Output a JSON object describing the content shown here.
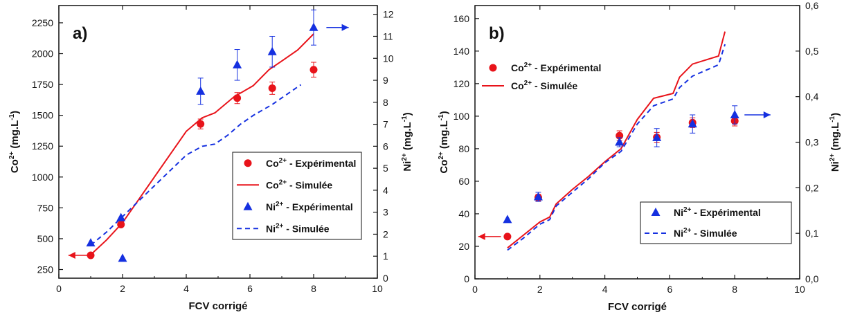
{
  "chart_data": [
    {
      "type": "scatter",
      "panel_label": "a)",
      "xlabel": "FCV corrigé",
      "ylabel": "Co",
      "ylabel_sup": "2+",
      "ylabel_unit": " (mg.L",
      "ylabel_unit_sup": "-1",
      "ylabel_close": ")",
      "y2label": "Ni",
      "y2label_sup": "2+",
      "y2label_unit": " (mg.L",
      "y2label_unit_sup": "-1",
      "y2label_close": ")",
      "xlim": [
        0,
        10
      ],
      "ylim": [
        180,
        2390
      ],
      "y2lim": [
        0,
        12.4
      ],
      "xticks": [
        "0",
        "2",
        "4",
        "6",
        "8",
        "10"
      ],
      "xtick_values": [
        0,
        2,
        4,
        6,
        8,
        10
      ],
      "yticks": [
        "250",
        "500",
        "750",
        "1000",
        "1250",
        "1500",
        "1750",
        "2000",
        "2250"
      ],
      "ytick_values": [
        250,
        500,
        750,
        1000,
        1250,
        1500,
        1750,
        2000,
        2250
      ],
      "y2ticks": [
        "0",
        "1",
        "2",
        "3",
        "4",
        "5",
        "6",
        "7",
        "8",
        "9",
        "10",
        "11",
        "12"
      ],
      "y2tick_values": [
        0,
        1,
        2,
        3,
        4,
        5,
        6,
        7,
        8,
        9,
        10,
        11,
        12
      ],
      "series": [
        {
          "name": "Co2+ - Expérimental",
          "kind": "marker-circle",
          "axis": "left",
          "color": "#e8131a",
          "x": [
            1.0,
            1.95,
            4.45,
            5.6,
            6.7,
            8.0
          ],
          "y": [
            365,
            615,
            1430,
            1640,
            1720,
            1870
          ],
          "err": [
            0,
            15,
            40,
            45,
            50,
            60
          ]
        },
        {
          "name": "Co2+ - Simulée",
          "kind": "line-solid",
          "axis": "left",
          "color": "#e8131a",
          "x": [
            1.0,
            1.5,
            2.0,
            3.0,
            4.0,
            4.5,
            4.9,
            5.5,
            6.1,
            6.6,
            7.0,
            7.5,
            8.0
          ],
          "y": [
            370,
            490,
            630,
            1000,
            1370,
            1480,
            1520,
            1650,
            1740,
            1870,
            1940,
            2030,
            2160
          ]
        },
        {
          "name": "Ni2+ - Expérimental",
          "kind": "marker-triangle",
          "axis": "right",
          "color": "#1530e0",
          "x": [
            1.0,
            1.95,
            2.0,
            4.45,
            5.6,
            6.7,
            8.0
          ],
          "y": [
            1.6,
            2.75,
            0.9,
            8.5,
            9.7,
            10.3,
            11.4
          ],
          "err": [
            0,
            0,
            0,
            0.6,
            0.7,
            0.7,
            0.8
          ]
        },
        {
          "name": "Ni2+ - Simulée",
          "kind": "line-dashed",
          "axis": "right",
          "color": "#1530e0",
          "x": [
            1.0,
            1.5,
            2.0,
            2.5,
            3.0,
            3.5,
            4.0,
            4.5,
            4.9,
            5.3,
            5.7,
            6.1,
            6.7,
            7.2,
            7.6
          ],
          "y": [
            1.5,
            2.1,
            2.8,
            3.5,
            4.2,
            4.9,
            5.6,
            6.0,
            6.1,
            6.5,
            7.0,
            7.4,
            7.9,
            8.4,
            8.8
          ]
        }
      ],
      "legend": {
        "position": "lower-right",
        "items": [
          {
            "label": "Co",
            "sup": "2+",
            "rest": " - Expérimental",
            "kind": "marker-circle",
            "color": "#e8131a"
          },
          {
            "label": "Co",
            "sup": "2+",
            "rest": " - Simulée",
            "kind": "line-solid",
            "color": "#e8131a"
          },
          {
            "label": "Ni",
            "sup": "2+",
            "rest": " - Expérimental",
            "kind": "marker-triangle",
            "color": "#1530e0"
          },
          {
            "label": "Ni",
            "sup": "2+",
            "rest": " - Simulée",
            "kind": "line-dashed",
            "color": "#1530e0"
          }
        ]
      },
      "arrows": [
        {
          "direction": "left",
          "color": "#e8131a",
          "y_axis": "left",
          "x_from": 0.95,
          "x_to": 0.3,
          "y": 365
        },
        {
          "direction": "right",
          "color": "#1530e0",
          "y_axis": "right",
          "x_from": 8.4,
          "x_to": 9.1,
          "y": 11.4
        }
      ]
    },
    {
      "type": "scatter",
      "panel_label": "b)",
      "xlabel": "FCV corrigé",
      "ylabel": "Co",
      "ylabel_sup": "2+",
      "ylabel_unit": " (mg.L",
      "ylabel_unit_sup": "-1",
      "ylabel_close": ")",
      "y2label": "Ni",
      "y2label_sup": "2+",
      "y2label_unit": " (mg.L",
      "y2label_unit_sup": "-1",
      "y2label_close": ")",
      "xlim": [
        0,
        10
      ],
      "ylim": [
        0,
        168
      ],
      "y2lim": [
        0,
        0.6
      ],
      "xticks": [
        "0",
        "2",
        "4",
        "6",
        "8",
        "10"
      ],
      "xtick_values": [
        0,
        2,
        4,
        6,
        8,
        10
      ],
      "yticks": [
        "0",
        "20",
        "40",
        "60",
        "80",
        "100",
        "120",
        "140",
        "160"
      ],
      "ytick_values": [
        0,
        20,
        40,
        60,
        80,
        100,
        120,
        140,
        160
      ],
      "y2ticks": [
        "0,0",
        "0,1",
        "0,2",
        "0,3",
        "0,4",
        "0,5",
        "0,6"
      ],
      "y2tick_values": [
        0,
        0.1,
        0.2,
        0.3,
        0.4,
        0.5,
        0.6
      ],
      "series": [
        {
          "name": "Co2+ - Expérimental",
          "kind": "marker-circle",
          "axis": "left",
          "color": "#e8131a",
          "x": [
            1.0,
            1.95,
            4.45,
            5.6,
            6.7,
            8.0
          ],
          "y": [
            26,
            50,
            88,
            87,
            96,
            97
          ],
          "err": [
            0,
            2,
            3,
            3,
            3,
            3
          ]
        },
        {
          "name": "Co2+ - Simulée",
          "kind": "line-solid",
          "axis": "left",
          "color": "#e8131a",
          "x": [
            1.0,
            1.5,
            2.0,
            2.3,
            2.5,
            3.0,
            3.5,
            4.0,
            4.5,
            5.0,
            5.5,
            6.1,
            6.3,
            6.7,
            7.5,
            7.7
          ],
          "y": [
            19,
            27,
            35,
            38,
            46,
            55,
            63,
            72,
            80,
            98,
            111,
            114,
            124,
            132,
            137,
            152
          ]
        },
        {
          "name": "Ni2+ - Expérimental",
          "kind": "marker-triangle",
          "axis": "right",
          "color": "#1530e0",
          "x": [
            1.0,
            1.95,
            4.45,
            5.6,
            6.7,
            8.0
          ],
          "y": [
            0.13,
            0.18,
            0.3,
            0.31,
            0.34,
            0.36
          ],
          "err": [
            0,
            0.01,
            0.01,
            0.02,
            0.02,
            0.02
          ]
        },
        {
          "name": "Ni2+ - Simulée",
          "kind": "line-dashed",
          "axis": "right",
          "color": "#1530e0",
          "x": [
            1.0,
            1.5,
            2.0,
            2.3,
            2.5,
            3.0,
            3.5,
            4.0,
            4.5,
            5.0,
            5.5,
            6.1,
            6.3,
            6.7,
            7.5,
            7.7
          ],
          "y": [
            0.063,
            0.09,
            0.12,
            0.13,
            0.16,
            0.19,
            0.22,
            0.255,
            0.28,
            0.34,
            0.38,
            0.395,
            0.42,
            0.445,
            0.47,
            0.515
          ]
        }
      ],
      "legends": [
        {
          "position": "upper-left",
          "items": [
            {
              "label": "Co",
              "sup": "2+",
              "rest": " - Expérimental",
              "kind": "marker-circle",
              "color": "#e8131a"
            },
            {
              "label": "Co",
              "sup": "2+",
              "rest": " - Simulée",
              "kind": "line-solid",
              "color": "#e8131a"
            }
          ]
        },
        {
          "position": "lower-right",
          "items": [
            {
              "label": "Ni",
              "sup": "2+",
              "rest": " - Expérimental",
              "kind": "marker-triangle",
              "color": "#1530e0"
            },
            {
              "label": "Ni",
              "sup": "2+",
              "rest": " - Simulée",
              "kind": "line-dashed",
              "color": "#1530e0"
            }
          ]
        }
      ],
      "arrows": [
        {
          "direction": "left",
          "color": "#e8131a",
          "y_axis": "left",
          "x_from": 0.8,
          "x_to": 0.1,
          "y": 26
        },
        {
          "direction": "right",
          "color": "#1530e0",
          "y_axis": "right",
          "x_from": 8.3,
          "x_to": 9.1,
          "y": 0.36
        }
      ]
    }
  ]
}
